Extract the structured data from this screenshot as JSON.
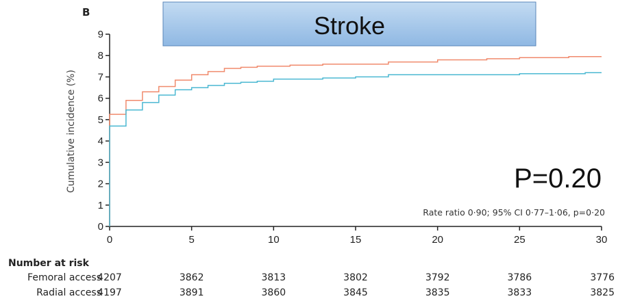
{
  "chart_data": {
    "type": "line",
    "panel_label": "B",
    "title": "Stroke",
    "ylabel": "Cumulative incidence (%)",
    "xlabel": "",
    "xlim": [
      0,
      30
    ],
    "ylim": [
      0,
      9
    ],
    "x_ticks": [
      0,
      5,
      10,
      15,
      20,
      25,
      30
    ],
    "y_ticks": [
      0,
      1,
      2,
      3,
      4,
      5,
      6,
      7,
      8,
      9
    ],
    "grid": false,
    "p_value_label": "P=0.20",
    "annotation": "Rate ratio 0·90; 95% CI 0·77–1·06, p=0·20",
    "series": [
      {
        "name": "Femoral access",
        "color": "#f08a6c",
        "points": [
          [
            0,
            0
          ],
          [
            0,
            5.25
          ],
          [
            1,
            5.25
          ],
          [
            1,
            5.9
          ],
          [
            2,
            5.9
          ],
          [
            2,
            6.3
          ],
          [
            3,
            6.3
          ],
          [
            3,
            6.55
          ],
          [
            4,
            6.55
          ],
          [
            4,
            6.85
          ],
          [
            5,
            6.85
          ],
          [
            5,
            7.1
          ],
          [
            6,
            7.1
          ],
          [
            6,
            7.25
          ],
          [
            7,
            7.25
          ],
          [
            7,
            7.4
          ],
          [
            8,
            7.4
          ],
          [
            8,
            7.45
          ],
          [
            9,
            7.45
          ],
          [
            9,
            7.5
          ],
          [
            11,
            7.5
          ],
          [
            11,
            7.55
          ],
          [
            13,
            7.55
          ],
          [
            13,
            7.6
          ],
          [
            17,
            7.6
          ],
          [
            17,
            7.7
          ],
          [
            20,
            7.7
          ],
          [
            20,
            7.8
          ],
          [
            23,
            7.8
          ],
          [
            23,
            7.85
          ],
          [
            25,
            7.85
          ],
          [
            25,
            7.9
          ],
          [
            28,
            7.9
          ],
          [
            28,
            7.95
          ],
          [
            30,
            7.95
          ]
        ]
      },
      {
        "name": "Radial access",
        "color": "#4bb8d2",
        "points": [
          [
            0,
            0
          ],
          [
            0,
            4.7
          ],
          [
            1,
            4.7
          ],
          [
            1,
            5.45
          ],
          [
            2,
            5.45
          ],
          [
            2,
            5.8
          ],
          [
            3,
            5.8
          ],
          [
            3,
            6.15
          ],
          [
            4,
            6.15
          ],
          [
            4,
            6.4
          ],
          [
            5,
            6.4
          ],
          [
            5,
            6.5
          ],
          [
            6,
            6.5
          ],
          [
            6,
            6.6
          ],
          [
            7,
            6.6
          ],
          [
            7,
            6.7
          ],
          [
            8,
            6.7
          ],
          [
            8,
            6.75
          ],
          [
            9,
            6.75
          ],
          [
            9,
            6.8
          ],
          [
            10,
            6.8
          ],
          [
            10,
            6.9
          ],
          [
            13,
            6.9
          ],
          [
            13,
            6.95
          ],
          [
            15,
            6.95
          ],
          [
            15,
            7.0
          ],
          [
            17,
            7.0
          ],
          [
            17,
            7.1
          ],
          [
            25,
            7.1
          ],
          [
            25,
            7.15
          ],
          [
            29,
            7.15
          ],
          [
            29,
            7.2
          ],
          [
            30,
            7.2
          ]
        ]
      }
    ]
  },
  "risk_table": {
    "title": "Number at risk",
    "rows": [
      {
        "label": "Femoral access",
        "values": [
          4207,
          3862,
          3813,
          3802,
          3792,
          3786,
          3776
        ]
      },
      {
        "label": "Radial access",
        "values": [
          4197,
          3891,
          3860,
          3845,
          3835,
          3833,
          3825
        ]
      }
    ]
  },
  "colors": {
    "title_box_top": "#c3dbf2",
    "title_box_bottom": "#8fb8e3",
    "title_box_border": "#5a86b8",
    "axis": "#222222"
  }
}
